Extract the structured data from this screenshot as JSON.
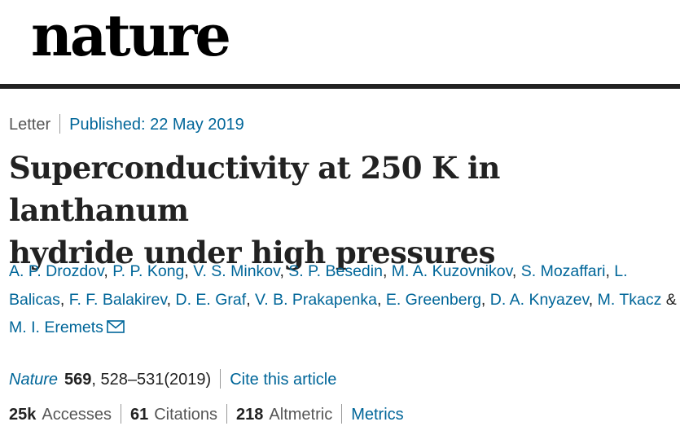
{
  "brand": {
    "logo_text": "nature"
  },
  "meta": {
    "article_type": "Letter",
    "published": "Published: 22 May 2019"
  },
  "title": {
    "line1": "Superconductivity at 250 K in lanthanum",
    "line2": "hydride under high pressures"
  },
  "authors": [
    "A. P. Drozdov",
    "P. P. Kong",
    "V. S. Minkov",
    "S. P. Besedin",
    "M. A. Kuzovnikov",
    "S. Mozaffari",
    "L. Balicas",
    "F. F. Balakirev",
    "D. E. Graf",
    "V. B. Prakapenka",
    "E. Greenberg",
    "D. A. Knyazev",
    "M. Tkacz",
    "M. I. Eremets"
  ],
  "authors_joiner": "&",
  "citation": {
    "journal": "Nature",
    "volume": "569",
    "pages": ", 528–531(2019)",
    "cite_link": "Cite this article"
  },
  "metrics": {
    "accesses_value": "25k",
    "accesses_label": "Accesses",
    "citations_value": "61",
    "citations_label": "Citations",
    "altmetric_value": "218",
    "altmetric_label": "Altmetric",
    "metrics_link": "Metrics"
  },
  "icons": {
    "corresponding_author": "envelope-icon"
  },
  "colors": {
    "link": "#006699",
    "text": "#222222",
    "muted": "#555555",
    "rule": "#222222"
  }
}
